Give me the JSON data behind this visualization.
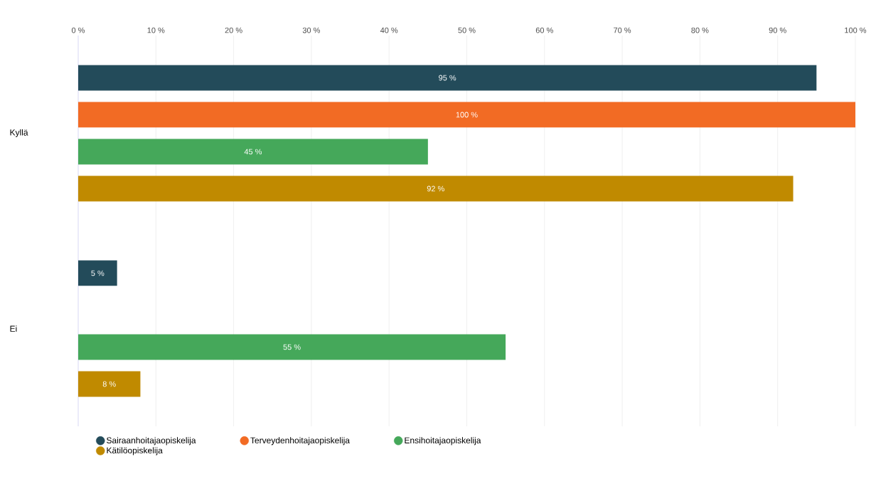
{
  "chart_data": {
    "type": "bar",
    "orientation": "horizontal",
    "categories": [
      "Kyllä",
      "Ei"
    ],
    "series": [
      {
        "name": "Sairaanhoitajaopiskelija",
        "color": "#234b5a",
        "values": [
          95,
          5
        ],
        "value_labels": [
          "95 %",
          "5 %"
        ]
      },
      {
        "name": "Terveydenhoitajaopiskelija",
        "color": "#f26b24",
        "values": [
          100,
          null
        ],
        "value_labels": [
          "100 %",
          null
        ]
      },
      {
        "name": "Ensihoitajaopiskelija",
        "color": "#45a85a",
        "values": [
          45,
          55
        ],
        "value_labels": [
          "45 %",
          "55 %"
        ]
      },
      {
        "name": "Kätilöopiskelija",
        "color": "#c08a00",
        "values": [
          92,
          8
        ],
        "value_labels": [
          "92 %",
          "8 %"
        ]
      }
    ],
    "xlim": [
      0,
      100
    ],
    "xticks": [
      {
        "value": 0,
        "label": "0 %"
      },
      {
        "value": 10,
        "label": "10 %"
      },
      {
        "value": 20,
        "label": "20 %"
      },
      {
        "value": 30,
        "label": "30 %"
      },
      {
        "value": 40,
        "label": "40 %"
      },
      {
        "value": 50,
        "label": "50 %"
      },
      {
        "value": 60,
        "label": "60 %"
      },
      {
        "value": 70,
        "label": "70 %"
      },
      {
        "value": 80,
        "label": "80 %"
      },
      {
        "value": 90,
        "label": "90 %"
      },
      {
        "value": 100,
        "label": "100 %"
      }
    ],
    "grid": "x",
    "legend": "bottom left"
  }
}
